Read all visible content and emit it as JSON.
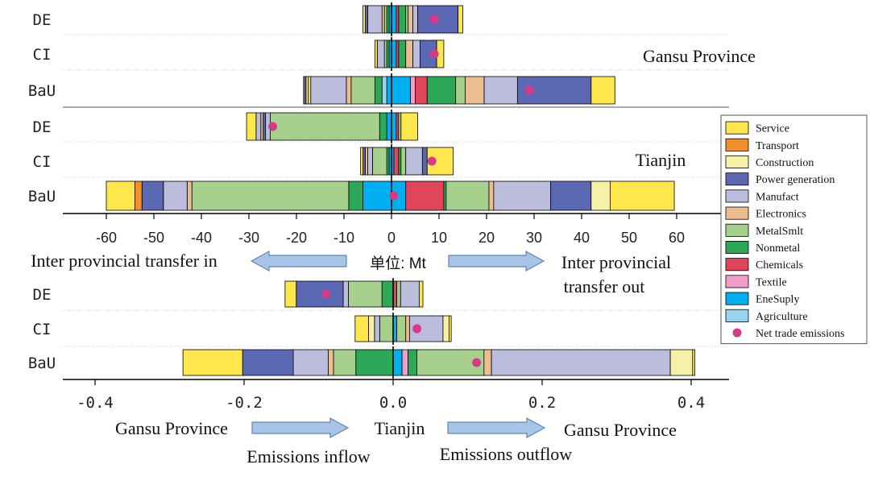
{
  "chart_data": [
    {
      "type": "bar",
      "stacked": "diverging-horizontal",
      "panels": [
        {
          "label": "Gansu Province",
          "rows": [
            {
              "name": "DE",
              "out": [
                [
                  "EneSuply",
                  1.0
                ],
                [
                  "Chemicals",
                  0.5
                ],
                [
                  "Nonmetal",
                  1.5
                ],
                [
                  "MetalSmlt",
                  0.5
                ],
                [
                  "Electronics",
                  1.0
                ],
                [
                  "Manufact",
                  1.0
                ],
                [
                  "Power generation",
                  8.5
                ],
                [
                  "Service",
                  1.0
                ]
              ],
              "in": [
                [
                  "EneSuply",
                  0.5
                ],
                [
                  "Nonmetal",
                  0.5
                ],
                [
                  "MetalSmlt",
                  0.5
                ],
                [
                  "Electronics",
                  0.5
                ],
                [
                  "Manufact",
                  3.0
                ],
                [
                  "Power generation",
                  0.5
                ],
                [
                  "Service",
                  0.5
                ]
              ],
              "net": 9
            },
            {
              "name": "CI",
              "out": [
                [
                  "EneSuply",
                  1.0
                ],
                [
                  "Chemicals",
                  0.5
                ],
                [
                  "Nonmetal",
                  1.5
                ],
                [
                  "Electronics",
                  1.5
                ],
                [
                  "Manufact",
                  1.5
                ],
                [
                  "Power generation",
                  3.5
                ],
                [
                  "Service",
                  1.5
                ]
              ],
              "in": [
                [
                  "EneSuply",
                  0.5
                ],
                [
                  "Nonmetal",
                  0.5
                ],
                [
                  "MetalSmlt",
                  0.5
                ],
                [
                  "Manufact",
                  1.5
                ],
                [
                  "Service",
                  0.5
                ]
              ],
              "net": 9
            },
            {
              "name": "BaU",
              "out": [
                [
                  "EneSuply",
                  4.0
                ],
                [
                  "Textile",
                  1.0
                ],
                [
                  "Chemicals",
                  2.5
                ],
                [
                  "Nonmetal",
                  6.0
                ],
                [
                  "MetalSmlt",
                  2.0
                ],
                [
                  "Electronics",
                  4.0
                ],
                [
                  "Manufact",
                  7.0
                ],
                [
                  "Power generation",
                  15.5
                ],
                [
                  "Service",
                  5.0
                ]
              ],
              "in": [
                [
                  "EneSuply",
                  1.0
                ],
                [
                  "Agriculture",
                  1.0
                ],
                [
                  "Nonmetal",
                  1.5
                ],
                [
                  "MetalSmlt",
                  5.0
                ],
                [
                  "Electronics",
                  1.0
                ],
                [
                  "Manufact",
                  7.5
                ],
                [
                  "Construction",
                  0.5
                ],
                [
                  "Service",
                  0.5
                ],
                [
                  "Power generation",
                  0.5
                ]
              ],
              "net": 29
            }
          ]
        },
        {
          "label": "Tianjin",
          "rows": [
            {
              "name": "DE",
              "out": [
                [
                  "EneSuply",
                  1.0
                ],
                [
                  "Chemicals",
                  0.5
                ],
                [
                  "MetalSmlt",
                  0.5
                ],
                [
                  "Service",
                  3.5
                ]
              ],
              "in": [
                [
                  "EneSuply",
                  1.0
                ],
                [
                  "Nonmetal",
                  1.5
                ],
                [
                  "MetalSmlt",
                  23.0
                ],
                [
                  "Manufact",
                  1.0
                ],
                [
                  "Power generation",
                  0.5
                ],
                [
                  "Electronics",
                  0.5
                ],
                [
                  "Manufact",
                  1.0
                ],
                [
                  "Service",
                  2.0
                ]
              ],
              "net": -25
            },
            {
              "name": "CI",
              "out": [
                [
                  "EneSuply",
                  0.5
                ],
                [
                  "Chemicals",
                  1.0
                ],
                [
                  "Nonmetal",
                  0.5
                ],
                [
                  "MetalSmlt",
                  1.0
                ],
                [
                  "Manufact",
                  3.5
                ],
                [
                  "Power generation",
                  1.0
                ],
                [
                  "Service",
                  5.5
                ]
              ],
              "in": [
                [
                  "EneSuply",
                  0.5
                ],
                [
                  "Nonmetal",
                  0.5
                ],
                [
                  "MetalSmlt",
                  3.0
                ],
                [
                  "Manufact",
                  1.0
                ],
                [
                  "Electronics",
                  0.5
                ],
                [
                  "Power generation",
                  0.5
                ],
                [
                  "Service",
                  0.5
                ]
              ],
              "net": 8.5
            },
            {
              "name": "BaU",
              "out": [
                [
                  "EneSuply",
                  3.0
                ],
                [
                  "Chemicals",
                  8.0
                ],
                [
                  "Nonmetal",
                  0.5
                ],
                [
                  "MetalSmlt",
                  9.0
                ],
                [
                  "Electronics",
                  1.0
                ],
                [
                  "Manufact",
                  12.0
                ],
                [
                  "Power generation",
                  8.5
                ],
                [
                  "Construction",
                  4.0
                ],
                [
                  "Service",
                  13.5
                ]
              ],
              "in": [
                [
                  "EneSuply",
                  6.0
                ],
                [
                  "Nonmetal",
                  3.0
                ],
                [
                  "MetalSmlt",
                  33.0
                ],
                [
                  "Electronics",
                  1.0
                ],
                [
                  "Manufact",
                  5.0
                ],
                [
                  "Power generation",
                  4.5
                ],
                [
                  "Transport",
                  1.5
                ],
                [
                  "Service",
                  6.0
                ]
              ],
              "net": 0.5
            }
          ]
        }
      ],
      "xticks": [
        -60,
        -50,
        -40,
        -30,
        -20,
        -10,
        0,
        10,
        20,
        30,
        40,
        50,
        60
      ],
      "xlim": [
        -65,
        70
      ],
      "arrow_labels": [
        "Inter provincial transfer in",
        "单位: Mt",
        "Inter provincial",
        "transfer out"
      ]
    },
    {
      "type": "bar",
      "stacked": "diverging-horizontal",
      "rows": [
        {
          "name": "DE",
          "out": [
            [
              "Chemicals",
              0.005
            ],
            [
              "MetalSmlt",
              0.005
            ],
            [
              "Manufact",
              0.025
            ],
            [
              "Service",
              0.005
            ]
          ],
          "in": [
            [
              "Nonmetal",
              0.015
            ],
            [
              "MetalSmlt",
              0.045
            ],
            [
              "Manufact",
              0.007
            ],
            [
              "Power generation",
              0.063
            ],
            [
              "Service",
              0.015
            ]
          ],
          "net": -0.09
        },
        {
          "name": "CI",
          "out": [
            [
              "EneSuply",
              0.005
            ],
            [
              "MetalSmlt",
              0.012
            ],
            [
              "Electronics",
              0.005
            ],
            [
              "Manufact",
              0.045
            ],
            [
              "Construction",
              0.008
            ],
            [
              "Service",
              0.003
            ]
          ],
          "in": [
            [
              "MetalSmlt",
              0.018
            ],
            [
              "Manufact",
              0.007
            ],
            [
              "Construction",
              0.008
            ],
            [
              "Service",
              0.018
            ]
          ],
          "net": 0.032
        },
        {
          "name": "BaU",
          "out": [
            [
              "EneSuply",
              0.012
            ],
            [
              "Textile",
              0.008
            ],
            [
              "Nonmetal",
              0.012
            ],
            [
              "MetalSmlt",
              0.09
            ],
            [
              "Electronics",
              0.01
            ],
            [
              "Manufact",
              0.24
            ],
            [
              "Construction",
              0.03
            ],
            [
              "Service",
              0.003
            ]
          ],
          "in": [
            [
              "Nonmetal",
              0.05
            ],
            [
              "MetalSmlt",
              0.03
            ],
            [
              "Electronics",
              0.007
            ],
            [
              "Manufact",
              0.047
            ],
            [
              "Power generation",
              0.068
            ],
            [
              "Service",
              0.08
            ]
          ],
          "net": 0.112
        }
      ],
      "xticks": [
        "-0.4",
        "-0.2",
        "0.0",
        "0.2",
        "0.4"
      ],
      "xtick_values": [
        -0.4,
        -0.2,
        0,
        0.2,
        0.4
      ],
      "xlim": [
        -0.44,
        0.44
      ],
      "arrow_labels": [
        "Gansu Province",
        "Tianjin",
        "Gansu Province"
      ],
      "footer_labels": [
        "Emissions inflow",
        "Emissions outflow"
      ]
    }
  ],
  "legend": {
    "placement": "right",
    "items": [
      {
        "label": "Service",
        "color": "#fde74c"
      },
      {
        "label": "Transport",
        "color": "#f28e2b"
      },
      {
        "label": "Construction",
        "color": "#f7f1a7"
      },
      {
        "label": "Power generation",
        "color": "#5b68b3"
      },
      {
        "label": "Manufact",
        "color": "#bcbddc"
      },
      {
        "label": "Electronics",
        "color": "#ecbd91"
      },
      {
        "label": "MetalSmlt",
        "color": "#a8d08d"
      },
      {
        "label": "Nonmetal",
        "color": "#2ca858"
      },
      {
        "label": "Chemicals",
        "color": "#e0455a"
      },
      {
        "label": "Textile",
        "color": "#f0a0c8"
      },
      {
        "label": "EneSuply",
        "color": "#00afef"
      },
      {
        "label": "Agriculture",
        "color": "#97d4f0"
      },
      {
        "label": "Net trade emissions",
        "color": "#d63a86",
        "marker": "dot"
      }
    ]
  }
}
